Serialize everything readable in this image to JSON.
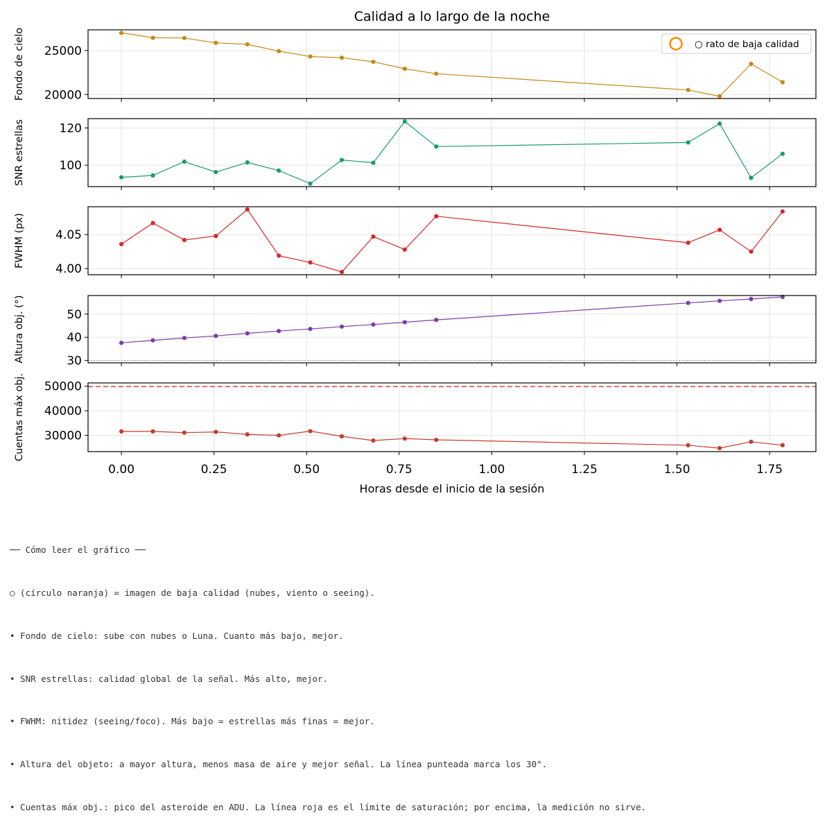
{
  "chart_data": {
    "type": "line",
    "title": "Calidad a lo largo de la noche",
    "xlabel": "Horas desde el inicio de la sesión",
    "xlim": [
      -0.09,
      1.875
    ],
    "xticks": [
      0.0,
      0.25,
      0.5,
      0.75,
      1.0,
      1.25,
      1.5,
      1.75
    ],
    "xtick_labels": [
      "0.00",
      "0.25",
      "0.50",
      "0.75",
      "1.00",
      "1.25",
      "1.50",
      "1.75"
    ],
    "x": [
      0.0,
      0.085,
      0.17,
      0.255,
      0.34,
      0.425,
      0.51,
      0.595,
      0.68,
      0.765,
      0.85,
      1.53,
      1.615,
      1.7,
      1.785
    ],
    "grid": true,
    "panels": [
      {
        "ylabel": "Fondo de cielo",
        "color": "#c58a19",
        "ylim": [
          19550,
          27350
        ],
        "yticks": [
          20000,
          25000
        ],
        "ytick_labels": [
          "20000",
          "25000"
        ],
        "values": [
          27000,
          26450,
          26420,
          25870,
          25700,
          24930,
          24320,
          24180,
          23720,
          22930,
          22360,
          20520,
          19800,
          23480,
          21400
        ],
        "legend": {
          "label": "○ rato de baja calidad",
          "marker_color": "#ff8c00",
          "position": "upper right"
        }
      },
      {
        "ylabel": "SNR estrellas",
        "color": "#1b9a72",
        "ylim": [
          88.5,
          125.0
        ],
        "yticks": [
          100,
          120
        ],
        "ytick_labels": [
          "100",
          "120"
        ],
        "values": [
          93.5,
          94.5,
          101.9,
          96.3,
          101.5,
          97.1,
          90.1,
          102.8,
          101.3,
          123.5,
          110.0,
          112.2,
          122.3,
          93.2,
          106.1
        ]
      },
      {
        "ylabel": "FWHM (px)",
        "color": "#d62728",
        "ylim": [
          3.991,
          4.091
        ],
        "yticks": [
          4.0,
          4.05
        ],
        "ytick_labels": [
          "4.00",
          "4.05"
        ],
        "values": [
          4.036,
          4.067,
          4.042,
          4.048,
          4.087,
          4.019,
          4.009,
          3.995,
          4.047,
          4.028,
          4.077,
          4.038,
          4.057,
          4.025,
          4.084
        ]
      },
      {
        "ylabel": "Altura obj. (°)",
        "color": "#7b3ea6",
        "ylim": [
          29.0,
          58.0
        ],
        "yticks": [
          30,
          40,
          50
        ],
        "ytick_labels": [
          "30",
          "40",
          "50"
        ],
        "values": [
          37.6,
          38.7,
          39.7,
          40.6,
          41.7,
          42.7,
          43.6,
          44.6,
          45.5,
          46.5,
          47.5,
          54.8,
          55.7,
          56.5,
          57.4
        ],
        "reference_line": {
          "y": 30,
          "style": "dotted",
          "color": "#999999"
        }
      },
      {
        "ylabel": "Cuentas máx obj.",
        "color": "#c43c2d",
        "ylim": [
          23400,
          51300
        ],
        "yticks": [
          30000,
          40000,
          50000
        ],
        "ytick_labels": [
          "30000",
          "40000",
          "50000"
        ],
        "values": [
          31600,
          31600,
          31100,
          31400,
          30400,
          30000,
          31700,
          29600,
          27900,
          28700,
          28200,
          26000,
          24800,
          27400,
          26000
        ],
        "reference_line": {
          "y": 49800,
          "style": "dashed",
          "color": "#d9534f"
        }
      }
    ]
  },
  "notes": {
    "heading": "── Cómo leer el gráfico ──",
    "lines": [
      "○ (círculo naranja) = imagen de baja calidad (nubes, viento o seeing).",
      "• Fondo de cielo: sube con nubes o Luna. Cuanto más bajo, mejor.",
      "• SNR estrellas: calidad global de la señal. Más alto, mejor.",
      "• FWHM: nitidez (seeing/foco). Más bajo = estrellas más finas = mejor.",
      "• Altura del objeto: a mayor altura, menos masa de aire y mejor señal. La línea punteada marca los 30°.",
      "• Cuentas máx obj.: pico del asteroide en ADU. La línea roja es el límite de saturación; por encima, la medición no sirve."
    ]
  }
}
